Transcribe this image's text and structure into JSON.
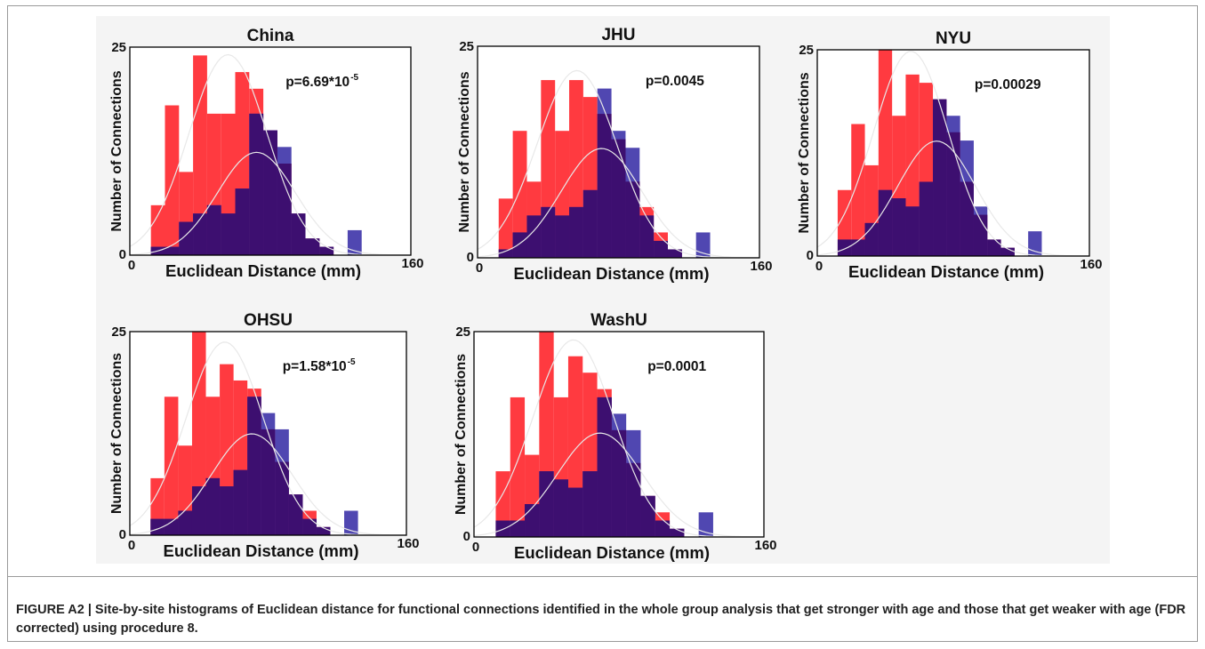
{
  "figure": {
    "caption_label": "FIGURE A2 |",
    "caption_text": "Site-by-site histograms of Euclidean distance for functional connections identified in the whole group analysis that get stronger with age and those that get weaker with age (FDR corrected) using procedure 8."
  },
  "colors": {
    "stronger": "#ff3a40",
    "weaker": "#2a1fa0",
    "overlap": "#3d0f70",
    "fit_curve": "#e8e8e8"
  },
  "chart_data": [
    {
      "type": "bar",
      "title": "China",
      "annotation": {
        "base": "p=6.69*10",
        "exp": "-5"
      },
      "xlabel": "Euclidean Distance (mm)",
      "ylabel": "Number of Connections",
      "xlim": [
        0,
        160
      ],
      "ylim": [
        0,
        25
      ],
      "x_ticks": [
        "0",
        "160"
      ],
      "y_ticks": [
        "0",
        "25"
      ],
      "bin_start": 12,
      "bin_width": 8,
      "series": [
        {
          "values": [
            6,
            18,
            10,
            24,
            17,
            17,
            22,
            20,
            15,
            11,
            5,
            2,
            1,
            0,
            0,
            0
          ]
        },
        {
          "values": [
            1,
            1,
            4,
            5,
            6,
            5,
            8,
            17,
            15,
            13,
            5,
            2,
            1,
            0,
            3,
            0
          ]
        }
      ]
    },
    {
      "type": "bar",
      "title": "JHU",
      "annotation": {
        "base": "p=0.0045",
        "exp": ""
      },
      "xlabel": "Euclidean Distance (mm)",
      "ylabel": "Number of Connections",
      "xlim": [
        0,
        160
      ],
      "ylim": [
        0,
        25
      ],
      "x_ticks": [
        "0",
        "160"
      ],
      "y_ticks": [
        "0",
        "25"
      ],
      "bin_start": 12,
      "bin_width": 8,
      "series": [
        {
          "values": [
            7,
            15,
            9,
            21,
            15,
            21,
            19,
            17,
            14,
            9,
            6,
            3,
            1,
            0,
            0,
            0
          ]
        },
        {
          "values": [
            1,
            3,
            5,
            6,
            5,
            6,
            8,
            20,
            15,
            13,
            5,
            2,
            1,
            0,
            3,
            0
          ]
        }
      ]
    },
    {
      "type": "bar",
      "title": "NYU",
      "annotation": {
        "base": "p=0.00029",
        "exp": ""
      },
      "xlabel": "Euclidean Distance (mm)",
      "ylabel": "Number of Connections",
      "xlim": [
        0,
        160
      ],
      "ylim": [
        0,
        25
      ],
      "x_ticks": [
        "0",
        "160"
      ],
      "y_ticks": [
        "0",
        "25"
      ],
      "bin_start": 12,
      "bin_width": 8,
      "series": [
        {
          "values": [
            8,
            16,
            11,
            25,
            17,
            22,
            21,
            19,
            15,
            9,
            5,
            2,
            1,
            0,
            0,
            0
          ]
        },
        {
          "values": [
            2,
            2,
            4,
            8,
            7,
            6,
            9,
            19,
            17,
            14,
            6,
            2,
            1,
            0,
            3,
            0
          ]
        }
      ]
    },
    {
      "type": "bar",
      "title": "OHSU",
      "annotation": {
        "base": "p=1.58*10",
        "exp": "-5"
      },
      "xlabel": "Euclidean Distance (mm)",
      "ylabel": "Number of Connections",
      "xlim": [
        0,
        160
      ],
      "ylim": [
        0,
        25
      ],
      "x_ticks": [
        "0",
        "160"
      ],
      "y_ticks": [
        "0",
        "25"
      ],
      "bin_start": 12,
      "bin_width": 8,
      "series": [
        {
          "values": [
            7,
            17,
            11,
            25,
            17,
            21,
            19,
            18,
            13,
            9,
            5,
            3,
            1,
            0,
            0,
            0
          ]
        },
        {
          "values": [
            2,
            2,
            3,
            6,
            7,
            6,
            8,
            17,
            15,
            13,
            5,
            2,
            1,
            0,
            3,
            0
          ]
        }
      ]
    },
    {
      "type": "bar",
      "title": "WashU",
      "annotation": {
        "base": "p=0.0001",
        "exp": ""
      },
      "xlabel": "Euclidean Distance (mm)",
      "ylabel": "Number of Connections",
      "xlim": [
        0,
        160
      ],
      "ylim": [
        0,
        25
      ],
      "x_ticks": [
        "0",
        "160"
      ],
      "y_ticks": [
        "0",
        "25"
      ],
      "bin_start": 12,
      "bin_width": 8,
      "series": [
        {
          "values": [
            8,
            17,
            10,
            25,
            17,
            22,
            20,
            18,
            13,
            9,
            5,
            3,
            1,
            0,
            0,
            0
          ]
        },
        {
          "values": [
            2,
            2,
            4,
            8,
            7,
            6,
            8,
            17,
            15,
            13,
            5,
            2,
            1,
            0,
            3,
            0
          ]
        }
      ]
    }
  ]
}
